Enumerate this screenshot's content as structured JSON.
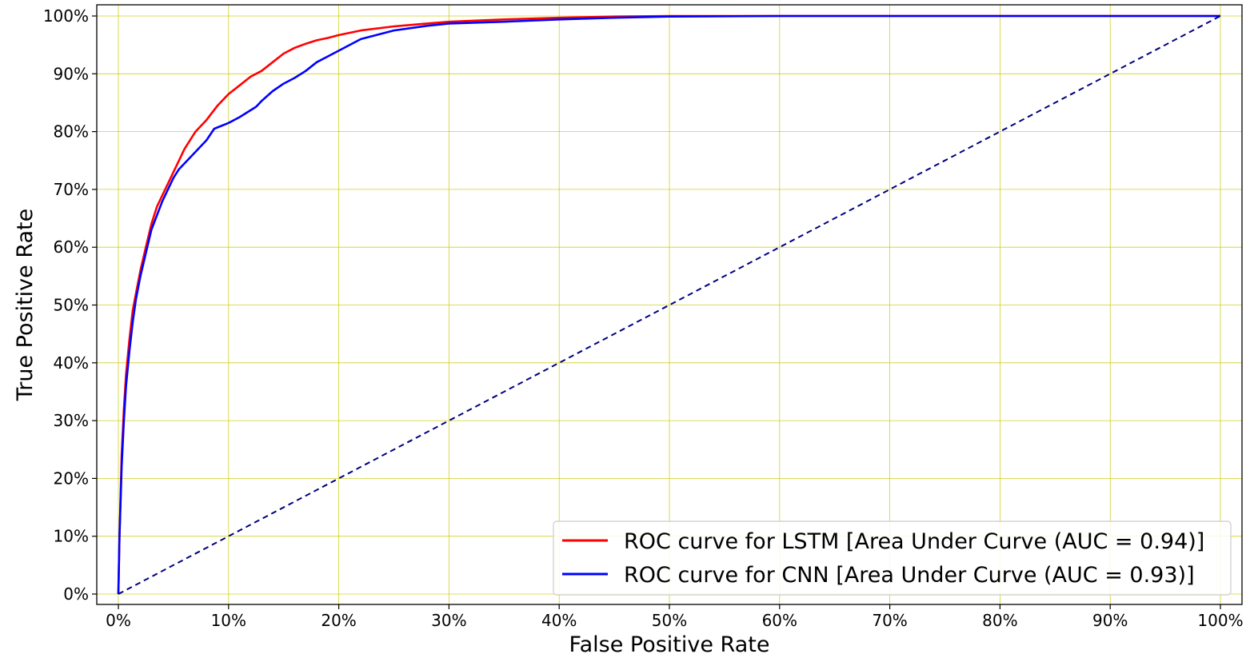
{
  "chart_data": {
    "type": "line",
    "xlabel": "False Positive Rate",
    "ylabel": "True Positive Rate",
    "xlim": [
      0,
      1
    ],
    "ylim": [
      0,
      1
    ],
    "x_ticks": [
      "0%",
      "10%",
      "20%",
      "30%",
      "40%",
      "50%",
      "60%",
      "70%",
      "80%",
      "90%",
      "100%"
    ],
    "y_ticks": [
      "0%",
      "10%",
      "20%",
      "30%",
      "40%",
      "50%",
      "60%",
      "70%",
      "80%",
      "90%",
      "100%"
    ],
    "grid": true,
    "grid_color": "#c8c800",
    "legend_position": "lower-right",
    "series": [
      {
        "name": "ROC curve for LSTM [Area Under Curve (AUC = 0.94)]",
        "color": "#ff0000",
        "style": "solid",
        "x": [
          0,
          0.001,
          0.002,
          0.003,
          0.005,
          0.007,
          0.01,
          0.013,
          0.016,
          0.02,
          0.025,
          0.03,
          0.035,
          0.04,
          0.045,
          0.05,
          0.055,
          0.06,
          0.065,
          0.07,
          0.08,
          0.09,
          0.1,
          0.11,
          0.12,
          0.13,
          0.14,
          0.15,
          0.16,
          0.17,
          0.18,
          0.19,
          0.2,
          0.22,
          0.25,
          0.28,
          0.3,
          0.35,
          0.4,
          0.45,
          0.5,
          0.6,
          0.7,
          0.8,
          0.9,
          1.0
        ],
        "y": [
          0,
          0.1,
          0.17,
          0.24,
          0.32,
          0.38,
          0.44,
          0.49,
          0.52,
          0.56,
          0.6,
          0.64,
          0.67,
          0.69,
          0.71,
          0.73,
          0.75,
          0.77,
          0.785,
          0.8,
          0.82,
          0.845,
          0.865,
          0.88,
          0.895,
          0.905,
          0.92,
          0.935,
          0.945,
          0.952,
          0.958,
          0.962,
          0.967,
          0.975,
          0.982,
          0.987,
          0.99,
          0.994,
          0.997,
          0.999,
          1.0,
          1.0,
          1.0,
          1.0,
          1.0,
          1.0
        ]
      },
      {
        "name": "ROC curve for CNN [Area Under Curve (AUC = 0.93)]",
        "color": "#0000ff",
        "style": "solid",
        "x": [
          0,
          0.001,
          0.002,
          0.003,
          0.005,
          0.007,
          0.01,
          0.013,
          0.016,
          0.02,
          0.025,
          0.03,
          0.035,
          0.04,
          0.045,
          0.05,
          0.055,
          0.06,
          0.065,
          0.07,
          0.08,
          0.087,
          0.1,
          0.11,
          0.125,
          0.13,
          0.14,
          0.15,
          0.16,
          0.17,
          0.18,
          0.19,
          0.2,
          0.22,
          0.25,
          0.28,
          0.3,
          0.35,
          0.4,
          0.45,
          0.5,
          0.6,
          0.7,
          0.8,
          0.9,
          1.0
        ],
        "y": [
          0,
          0.1,
          0.16,
          0.22,
          0.3,
          0.36,
          0.42,
          0.47,
          0.51,
          0.55,
          0.59,
          0.63,
          0.655,
          0.68,
          0.7,
          0.72,
          0.735,
          0.745,
          0.755,
          0.765,
          0.785,
          0.805,
          0.815,
          0.825,
          0.843,
          0.853,
          0.87,
          0.883,
          0.893,
          0.905,
          0.92,
          0.93,
          0.94,
          0.96,
          0.975,
          0.983,
          0.987,
          0.99,
          0.994,
          0.997,
          0.999,
          1.0,
          1.0,
          1.0,
          1.0,
          1.0
        ]
      },
      {
        "color": "#000080",
        "style": "dashed",
        "x": [
          0,
          1
        ],
        "y": [
          0,
          1
        ]
      }
    ]
  }
}
